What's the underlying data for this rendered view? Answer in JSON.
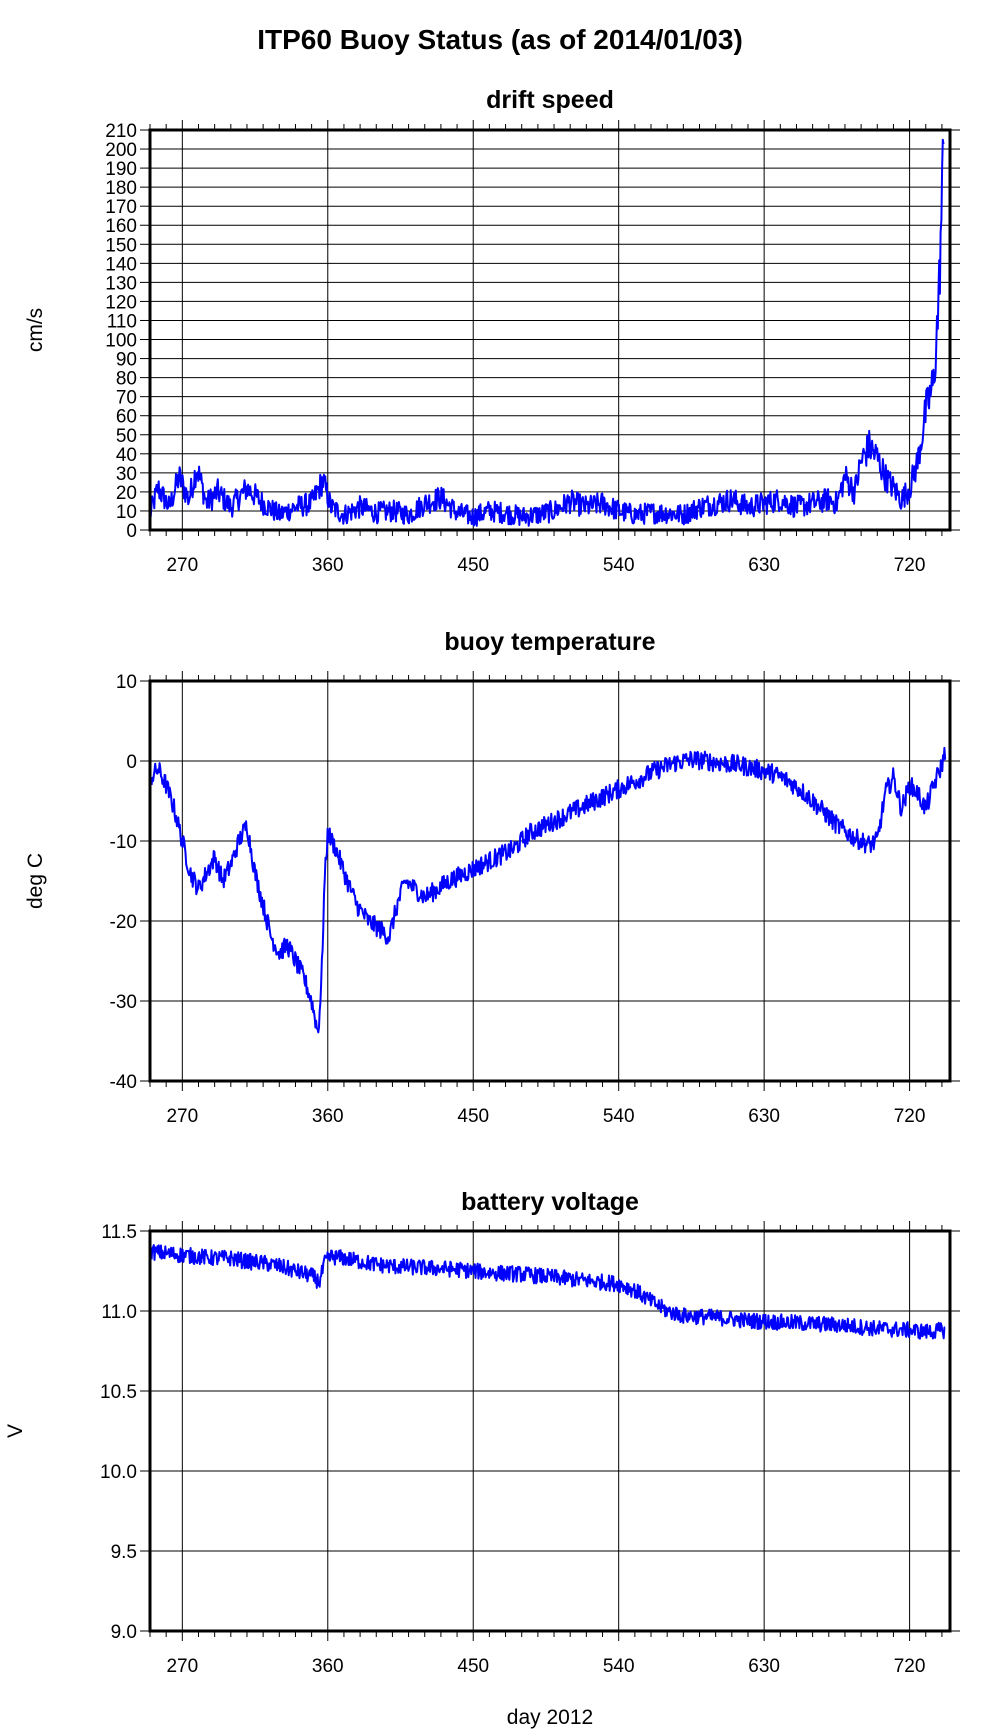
{
  "title": "ITP60 Buoy Status (as of 2014/01/03)",
  "chart_data": [
    {
      "type": "line",
      "title": "drift speed",
      "xlabel": "",
      "ylabel": "cm/s",
      "xlim": [
        250,
        745
      ],
      "ylim": [
        0,
        210
      ],
      "x_ticks": [
        270,
        360,
        450,
        540,
        630,
        720
      ],
      "y_ticks": [
        0,
        10,
        20,
        30,
        40,
        50,
        60,
        70,
        80,
        90,
        100,
        110,
        120,
        130,
        140,
        150,
        160,
        170,
        180,
        190,
        200,
        210
      ],
      "grid": true,
      "color": "#0000ff",
      "noise": 12,
      "series": [
        {
          "x": [
            250,
            255,
            262,
            268,
            274,
            279,
            285,
            292,
            300,
            310,
            320,
            330,
            340,
            350,
            357,
            362,
            370,
            380,
            390,
            400,
            410,
            420,
            430,
            440,
            450,
            460,
            470,
            480,
            490,
            500,
            510,
            520,
            530,
            540,
            550,
            560,
            570,
            580,
            590,
            600,
            610,
            620,
            630,
            640,
            650,
            660,
            670,
            675,
            680,
            686,
            690,
            695,
            700,
            705,
            710,
            715,
            720,
            725,
            730,
            735,
            738,
            741
          ],
          "y": [
            8,
            22,
            12,
            28,
            16,
            33,
            14,
            20,
            12,
            22,
            14,
            8,
            12,
            14,
            26,
            12,
            8,
            12,
            9,
            10,
            8,
            14,
            17,
            9,
            7,
            10,
            9,
            7,
            8,
            10,
            15,
            12,
            14,
            10,
            8,
            9,
            9,
            8,
            12,
            14,
            16,
            12,
            14,
            16,
            12,
            14,
            16,
            14,
            28,
            20,
            36,
            44,
            38,
            28,
            22,
            16,
            22,
            36,
            62,
            78,
            120,
            200
          ]
        }
      ]
    },
    {
      "type": "line",
      "title": "buoy temperature",
      "xlabel": "",
      "ylabel": "deg C",
      "xlim": [
        250,
        745
      ],
      "ylim": [
        -40,
        10
      ],
      "x_ticks": [
        270,
        360,
        450,
        540,
        630,
        720
      ],
      "y_ticks": [
        -40,
        -30,
        -20,
        -10,
        0,
        10
      ],
      "grid": true,
      "color": "#0000ff",
      "noise": 1.2,
      "series": [
        {
          "x": [
            251,
            255,
            260,
            265,
            270,
            275,
            280,
            285,
            290,
            295,
            300,
            305,
            310,
            315,
            320,
            325,
            330,
            335,
            340,
            345,
            350,
            354,
            356,
            358,
            360,
            365,
            372,
            378,
            385,
            392,
            398,
            403,
            408,
            414,
            420,
            428,
            435,
            445,
            455,
            465,
            475,
            485,
            495,
            505,
            515,
            525,
            535,
            545,
            555,
            565,
            575,
            585,
            595,
            605,
            615,
            625,
            635,
            645,
            655,
            665,
            675,
            685,
            690,
            695,
            700,
            705,
            710,
            715,
            720,
            725,
            730,
            735,
            739,
            742
          ],
          "y": [
            -2,
            -1,
            -3,
            -6,
            -10,
            -14,
            -16,
            -14,
            -12,
            -15,
            -13,
            -10,
            -8,
            -14,
            -18,
            -22,
            -24,
            -23,
            -25,
            -27,
            -30,
            -34,
            -28,
            -15,
            -9,
            -11,
            -15,
            -18,
            -20,
            -21,
            -22,
            -18,
            -15,
            -16,
            -17,
            -16,
            -15,
            -14,
            -13,
            -12,
            -11,
            -9,
            -8,
            -7,
            -6,
            -5,
            -4,
            -3,
            -2,
            -1,
            -0.2,
            0.2,
            0,
            -0.3,
            -0.5,
            -1,
            -1.5,
            -2.5,
            -4,
            -6,
            -8,
            -9.5,
            -10,
            -10.5,
            -10,
            -4,
            -2,
            -6,
            -3,
            -4,
            -6,
            -3,
            -1,
            1
          ]
        }
      ]
    },
    {
      "type": "line",
      "title": "battery voltage",
      "xlabel": "day 2012",
      "ylabel": "V",
      "xlim": [
        250,
        745
      ],
      "ylim": [
        9.0,
        11.5
      ],
      "x_ticks": [
        270,
        360,
        450,
        540,
        630,
        720
      ],
      "y_ticks": [
        9.0,
        9.5,
        10.0,
        10.5,
        11.0,
        11.5
      ],
      "y_tick_labels": [
        "9.0",
        "9.5",
        "10.0",
        "10.5",
        "11.0",
        "11.5"
      ],
      "grid": true,
      "color": "#0000ff",
      "noise": 0.05,
      "series": [
        {
          "x": [
            251,
            260,
            270,
            280,
            290,
            300,
            310,
            320,
            330,
            340,
            350,
            355,
            358,
            362,
            370,
            380,
            390,
            400,
            420,
            440,
            460,
            480,
            500,
            520,
            540,
            550,
            560,
            570,
            580,
            600,
            620,
            640,
            660,
            680,
            700,
            720,
            730,
            742
          ],
          "y": [
            11.37,
            11.36,
            11.35,
            11.34,
            11.33,
            11.33,
            11.31,
            11.3,
            11.28,
            11.25,
            11.22,
            11.18,
            11.3,
            11.34,
            11.33,
            11.31,
            11.29,
            11.28,
            11.27,
            11.26,
            11.24,
            11.23,
            11.21,
            11.19,
            11.17,
            11.13,
            11.06,
            11.0,
            10.97,
            10.96,
            10.94,
            10.93,
            10.92,
            10.91,
            10.89,
            10.88,
            10.87,
            10.88
          ]
        }
      ]
    }
  ]
}
